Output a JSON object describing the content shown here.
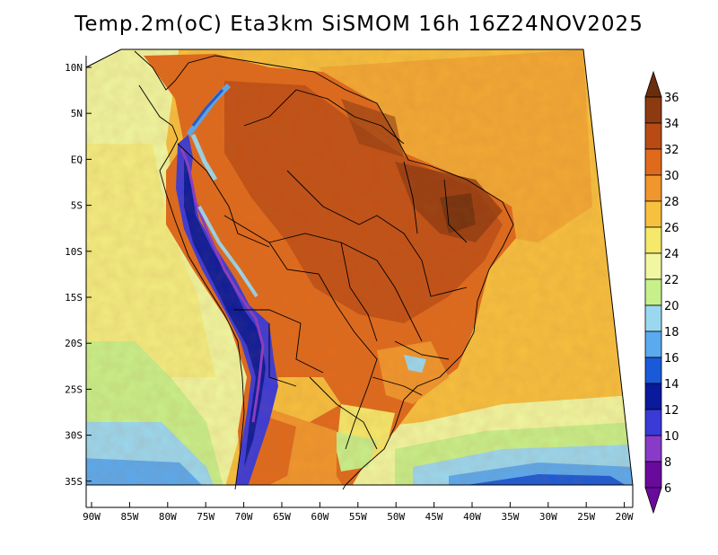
{
  "title": "Temp.2m(oC) Eta3km SiSMOM 16h 16Z24NOV2025",
  "axes": {
    "lat_labels": [
      "10N",
      "5N",
      "EQ",
      "5S",
      "10S",
      "15S",
      "20S",
      "25S",
      "30S",
      "35S"
    ],
    "lon_labels": [
      "90W",
      "85W",
      "80W",
      "75W",
      "70W",
      "65W",
      "60W",
      "55W",
      "50W",
      "45W",
      "40W",
      "35W",
      "30W",
      "25W",
      "20W"
    ]
  },
  "colorbar": {
    "labels": [
      "36",
      "34",
      "32",
      "30",
      "28",
      "26",
      "24",
      "22",
      "20",
      "18",
      "16",
      "14",
      "12",
      "10",
      "8",
      "6"
    ],
    "colors": [
      "#6b2e0c",
      "#8e3a10",
      "#b84a14",
      "#e06a1c",
      "#f0962c",
      "#f7c03e",
      "#f5e86a",
      "#f0f7a0",
      "#c8f08a",
      "#9ad8f0",
      "#5aaaf0",
      "#1a5ad8",
      "#0a1a9c",
      "#3a3ad8",
      "#8a3ac8",
      "#6a0a9c"
    ]
  },
  "chart_data": {
    "type": "heatmap",
    "title": "Temp.2m(oC) Eta3km SiSMOM 16h 16Z24NOV2025",
    "variable": "2 m air temperature",
    "units": "oC",
    "levels": [
      6,
      8,
      10,
      12,
      14,
      16,
      18,
      20,
      22,
      24,
      26,
      28,
      30,
      32,
      34,
      36
    ],
    "lon_range": [
      -90,
      -20
    ],
    "lat_range": [
      -37,
      11
    ],
    "region": "South America (Brazil)"
  }
}
